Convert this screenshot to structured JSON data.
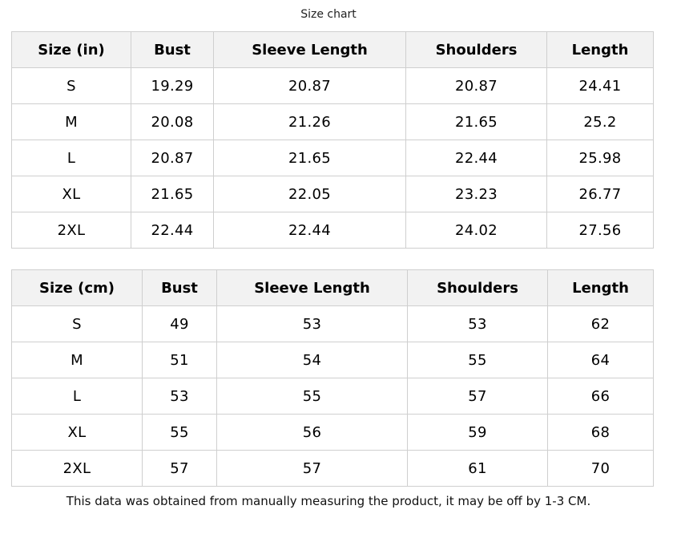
{
  "title": "Size chart",
  "tables": [
    {
      "headers": [
        "Size (in)",
        "Bust",
        "Sleeve Length",
        "Shoulders",
        "Length"
      ],
      "rows": [
        [
          "S",
          "19.29",
          "20.87",
          "20.87",
          "24.41"
        ],
        [
          "M",
          "20.08",
          "21.26",
          "21.65",
          "25.2"
        ],
        [
          "L",
          "20.87",
          "21.65",
          "22.44",
          "25.98"
        ],
        [
          "XL",
          "21.65",
          "22.05",
          "23.23",
          "26.77"
        ],
        [
          "2XL",
          "22.44",
          "22.44",
          "24.02",
          "27.56"
        ]
      ]
    },
    {
      "headers": [
        "Size (cm)",
        "Bust",
        "Sleeve Length",
        "Shoulders",
        "Length"
      ],
      "rows": [
        [
          "S",
          "49",
          "53",
          "53",
          "62"
        ],
        [
          "M",
          "51",
          "54",
          "55",
          "64"
        ],
        [
          "L",
          "53",
          "55",
          "57",
          "66"
        ],
        [
          "XL",
          "55",
          "56",
          "59",
          "68"
        ],
        [
          "2XL",
          "57",
          "57",
          "61",
          "70"
        ]
      ]
    }
  ],
  "note": "This data was obtained from manually measuring the product, it may be off by 1-3 CM."
}
